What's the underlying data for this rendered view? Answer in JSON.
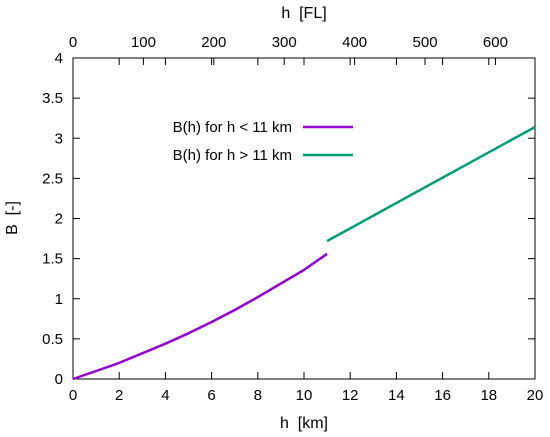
{
  "chart_data": {
    "type": "line",
    "xlabel": "h  [km]",
    "x2label": "h  [FL]",
    "ylabel": "B  [-]",
    "xlim": [
      0,
      20
    ],
    "ylim": [
      0,
      4
    ],
    "x2lim": [
      0,
      656.17
    ],
    "xticks": [
      0,
      2,
      4,
      6,
      8,
      10,
      12,
      14,
      16,
      18,
      20
    ],
    "yticks": [
      0,
      0.5,
      1,
      1.5,
      2,
      2.5,
      3,
      3.5,
      4
    ],
    "x2ticks": [
      0,
      100,
      200,
      300,
      400,
      500,
      600
    ],
    "ytick_labels": [
      "0",
      "0.5",
      "1",
      "1.5",
      "2",
      "2.5",
      "3",
      "3.5",
      "4"
    ],
    "grid": false,
    "legend_position": "top-center",
    "series": [
      {
        "name": "B(h) for h < 11 km",
        "color": "#9400d3",
        "x": [
          0,
          1,
          2,
          3,
          4,
          5,
          6,
          7,
          8,
          9,
          10,
          11
        ],
        "y": [
          0,
          0.1,
          0.2,
          0.32,
          0.44,
          0.57,
          0.71,
          0.86,
          1.02,
          1.19,
          1.36,
          1.56
        ]
      },
      {
        "name": "B(h) for h > 11 km",
        "color": "#009e73",
        "x": [
          11,
          20
        ],
        "y": [
          1.72,
          3.14
        ]
      }
    ]
  }
}
